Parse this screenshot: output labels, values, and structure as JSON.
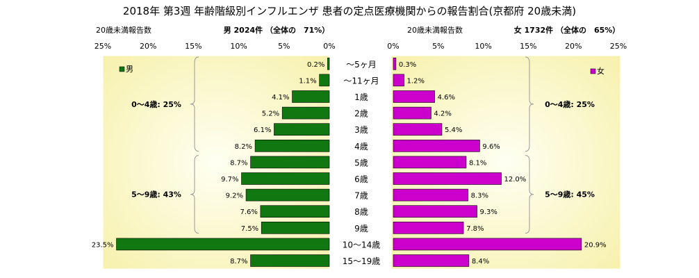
{
  "colors": {
    "male": "#117711",
    "female": "#cc00cc",
    "plot_bg_center": "#fffff2",
    "plot_bg_edge": "#f6f0a8",
    "bracket": "#999999"
  },
  "chart_data": {
    "type": "bar",
    "orientation": "horizontal-population-pyramid",
    "title": "2018年 第3週 年齢階級別インフルエンザ 患者の定点医療機関からの報告割合(京都府 20歳未満)",
    "categories": [
      "～5ヶ月",
      "～11ヶ月",
      "1歳",
      "2歳",
      "3歳",
      "4歳",
      "5歳",
      "6歳",
      "7歳",
      "8歳",
      "9歳",
      "10～14歳",
      "15～19歳"
    ],
    "left_panel": {
      "axis_label": "20歳未満報告数",
      "header": "男 2024件 （全体の　71%）",
      "legend": "男",
      "ticks": [
        "25%",
        "20%",
        "15%",
        "10%",
        "5%",
        "0%"
      ],
      "xlim": [
        0,
        25
      ],
      "series": {
        "name": "男",
        "values": [
          0.2,
          1.1,
          4.1,
          5.2,
          6.1,
          8.2,
          8.7,
          9.7,
          9.2,
          7.6,
          7.5,
          23.5,
          8.7
        ],
        "labels": [
          "0.2%",
          "1.1%",
          "4.1%",
          "5.2%",
          "6.1%",
          "8.2%",
          "8.7%",
          "9.7%",
          "9.2%",
          "7.6%",
          "7.5%",
          "23.5%",
          "8.7%"
        ]
      },
      "groups": [
        {
          "label": "0～4歳: 25%",
          "from": 0,
          "to": 5
        },
        {
          "label": "5～9歳: 43%",
          "from": 6,
          "to": 10
        }
      ]
    },
    "right_panel": {
      "axis_label": "20歳未満報告数",
      "header": "女 1732件 （全体の　65%）",
      "legend": "女",
      "ticks": [
        "0%",
        "5%",
        "10%",
        "15%",
        "20%",
        "25%"
      ],
      "xlim": [
        0,
        25
      ],
      "series": {
        "name": "女",
        "values": [
          0.3,
          1.2,
          4.6,
          4.2,
          5.4,
          9.6,
          8.1,
          12.0,
          8.3,
          9.3,
          7.8,
          20.9,
          8.4
        ],
        "labels": [
          "0.3%",
          "1.2%",
          "4.6%",
          "4.2%",
          "5.4%",
          "9.6%",
          "8.1%",
          "12.0%",
          "8.3%",
          "9.3%",
          "7.8%",
          "20.9%",
          "8.4%"
        ]
      },
      "groups": [
        {
          "label": "0～4歳: 25%",
          "from": 0,
          "to": 5
        },
        {
          "label": "5～9歳: 45%",
          "from": 6,
          "to": 10
        }
      ]
    }
  }
}
